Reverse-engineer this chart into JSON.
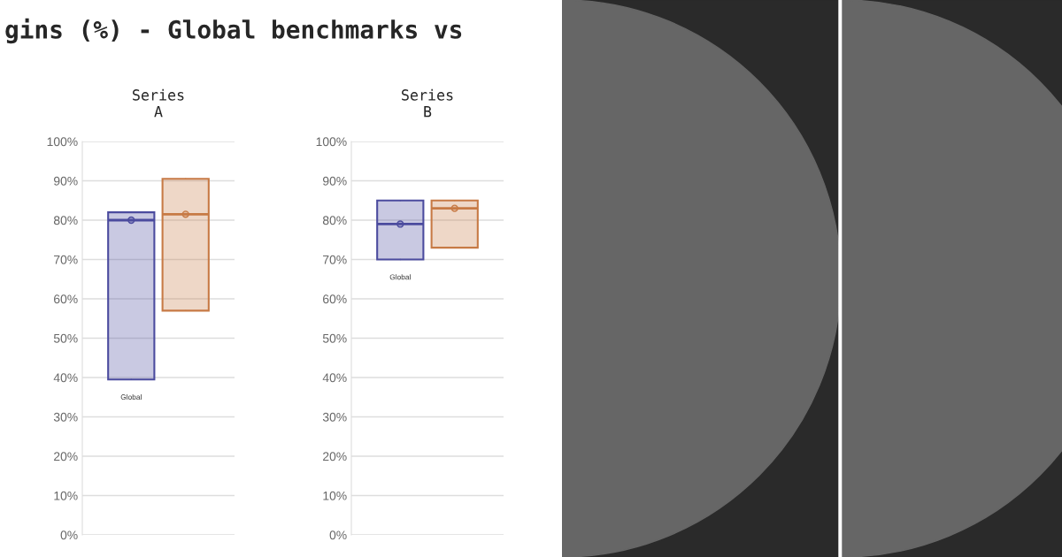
{
  "chart_data": [
    {
      "type": "box",
      "title": "gins (%) - Global benchmarks vs",
      "subtitle": "Series\nA",
      "categories": [
        "Global",
        null
      ],
      "colors": [
        "#4b4b9e",
        "#c77a45"
      ],
      "boxes": [
        {
          "low": 39.5,
          "q1": 39.5,
          "median": 80,
          "q3": 82,
          "high": 82,
          "mean": 80
        },
        {
          "low": 57,
          "q1": 57,
          "median": 81.5,
          "q3": 90.5,
          "high": 90.5,
          "mean": 81.5
        }
      ],
      "ylim": [
        0,
        100
      ],
      "yticks": [
        {
          "value": 0,
          "label": "0%"
        },
        {
          "value": 10,
          "label": "10%"
        },
        {
          "value": 20,
          "label": "20%"
        },
        {
          "value": 30,
          "label": "30%"
        },
        {
          "value": 40,
          "label": "40%"
        },
        {
          "value": 50,
          "label": "50%"
        },
        {
          "value": 60,
          "label": "60%"
        },
        {
          "value": 70,
          "label": "70%"
        },
        {
          "value": 80,
          "label": "80%"
        },
        {
          "value": 90,
          "label": "90%"
        },
        {
          "value": 100,
          "label": "100%"
        }
      ],
      "grid": "y",
      "tick_labels": "y"
    },
    {
      "type": "box",
      "subtitle": "Series\nB",
      "categories": [
        "Global",
        null
      ],
      "colors": [
        "#4b4b9e",
        "#c77a45"
      ],
      "boxes": [
        {
          "low": 70,
          "q1": 70,
          "median": 79,
          "q3": 85,
          "high": 85,
          "mean": 79
        },
        {
          "low": 73,
          "q1": 73,
          "median": 83,
          "q3": 85,
          "high": 85,
          "mean": 83
        }
      ],
      "ylim": [
        0,
        100
      ],
      "yticks": [
        {
          "value": 0,
          "label": "0%"
        },
        {
          "value": 10,
          "label": "10%"
        },
        {
          "value": 20,
          "label": "20%"
        },
        {
          "value": 30,
          "label": "30%"
        },
        {
          "value": 40,
          "label": "40%"
        },
        {
          "value": 50,
          "label": "50%"
        },
        {
          "value": 60,
          "label": "60%"
        },
        {
          "value": 70,
          "label": "70%"
        },
        {
          "value": 80,
          "label": "80%"
        },
        {
          "value": 90,
          "label": "90%"
        },
        {
          "value": 100,
          "label": "100%"
        }
      ],
      "grid": "y",
      "tick_labels": "y"
    }
  ]
}
